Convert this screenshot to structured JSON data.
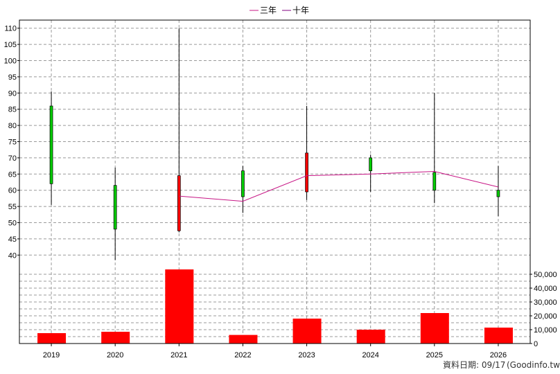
{
  "legend": [
    {
      "label": "三年",
      "color": "#c71585"
    },
    {
      "label": "十年",
      "color": "#800080"
    }
  ],
  "footer": {
    "date_label": "資料日期: 09/17",
    "source": "(Goodinfo.tw)"
  },
  "colors": {
    "rise": "#ff0000",
    "fall": "#00cc00",
    "volume": "#ff0000",
    "line3": "#c71585",
    "grid": "#999999"
  },
  "chart_data": [
    {
      "type": "candlestick",
      "title": "",
      "categories": [
        "2019",
        "2020",
        "2021",
        "2022",
        "2023",
        "2024",
        "2025",
        "2026"
      ],
      "candles": [
        {
          "x": "2019",
          "open": 86,
          "close": 62,
          "high": 90.5,
          "low": 55.5
        },
        {
          "x": "2020",
          "open": 61.5,
          "close": 48,
          "high": 67,
          "low": 38.5
        },
        {
          "x": "2021",
          "open": 47.5,
          "close": 64.5,
          "high": 110,
          "low": 47
        },
        {
          "x": "2022",
          "open": 66,
          "close": 58,
          "high": 67.5,
          "low": 53
        },
        {
          "x": "2023",
          "open": 59.5,
          "close": 71.5,
          "high": 86,
          "low": 57
        },
        {
          "x": "2024",
          "open": 70,
          "close": 66,
          "high": 71,
          "low": 59.5
        },
        {
          "x": "2025",
          "open": 65.5,
          "close": 60,
          "high": 90,
          "low": 56
        },
        {
          "x": "2026",
          "open": 60,
          "close": 58,
          "high": 67.5,
          "low": 52
        }
      ],
      "series": [
        {
          "name": "三年",
          "x": [
            "2021",
            "2022",
            "2023",
            "2024",
            "2025",
            "2026"
          ],
          "values": [
            58.2,
            56.6,
            64.5,
            65,
            65.8,
            61
          ]
        }
      ],
      "y_ticks": [
        40,
        45,
        50,
        55,
        60,
        65,
        70,
        75,
        80,
        85,
        90,
        95,
        100,
        105,
        110
      ],
      "ylim": [
        37.5,
        112.5
      ],
      "grid": true
    },
    {
      "type": "bar",
      "title": "",
      "categories": [
        "2019",
        "2020",
        "2021",
        "2022",
        "2023",
        "2024",
        "2025",
        "2026"
      ],
      "values": [
        7500,
        8500,
        53500,
        6200,
        18000,
        10000,
        22000,
        11500
      ],
      "y_ticks": [
        0,
        10000,
        20000,
        30000,
        40000,
        50000
      ],
      "y_tick_labels": [
        "0",
        "10,000",
        "20,000",
        "30,000",
        "40,000",
        "50,000"
      ],
      "ylim": [
        0,
        55000
      ],
      "grid": true
    }
  ]
}
